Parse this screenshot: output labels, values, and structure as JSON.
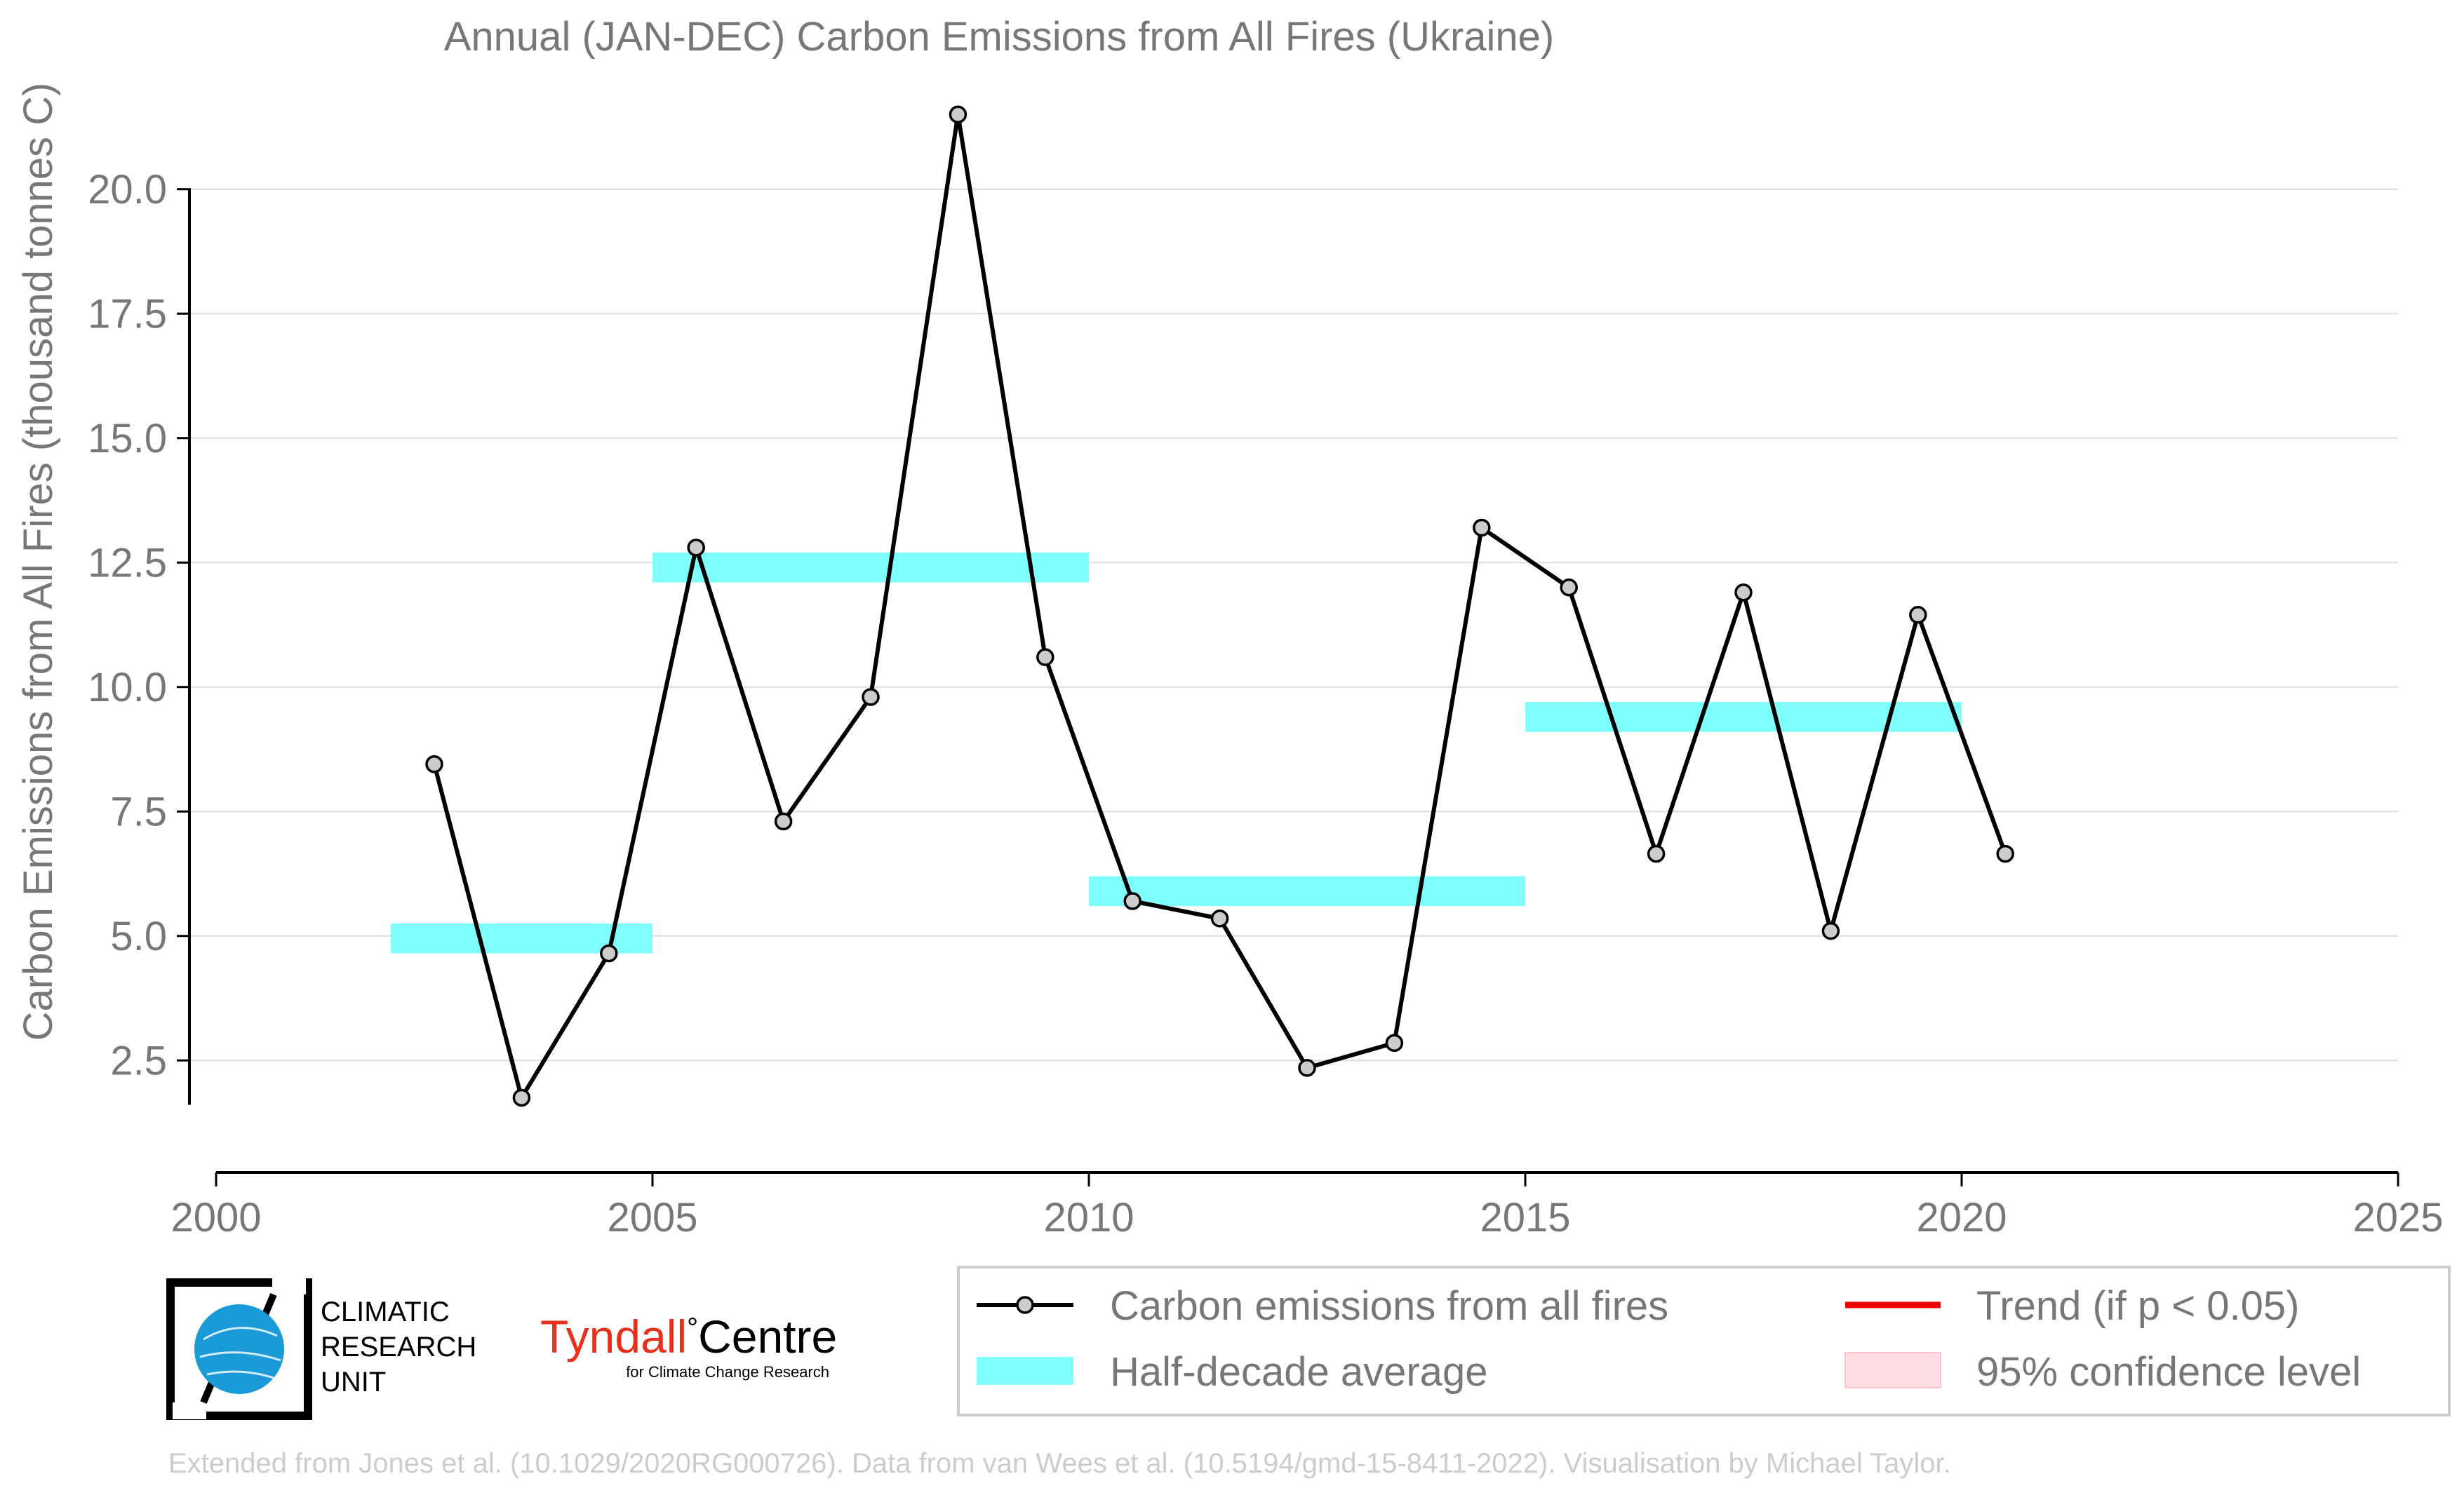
{
  "colors": {
    "text": "#777777",
    "axis": "#000000",
    "grid": "#dddddd",
    "line": "#000000",
    "marker_fill": "#cccccc",
    "half_decade": "#80ffff",
    "trend": "#ee0000",
    "confidence": "#ffdde2",
    "footer": "#cccccc",
    "tyndall_red": "#e8301c",
    "cru_blue": "#1a9ad6"
  },
  "chart_data": {
    "type": "line",
    "title": "Annual (JAN-DEC) Carbon Emissions from All Fires (Ukraine)",
    "xlabel": "",
    "ylabel": "Carbon Emissions from All Fires (thousand tonnes C)",
    "xlim": [
      2000,
      2025
    ],
    "ylim": [
      0.25,
      22.25
    ],
    "xticks": [
      2000,
      2005,
      2010,
      2015,
      2020,
      2025
    ],
    "yticks": [
      2.5,
      5.0,
      7.5,
      10.0,
      12.5,
      15.0,
      17.5,
      20.0
    ],
    "grid": "horizontal",
    "series": [
      {
        "name": "Carbon emissions from all fires",
        "x": [
          2002.5,
          2003.5,
          2004.5,
          2005.5,
          2006.5,
          2007.5,
          2008.5,
          2009.5,
          2010.5,
          2011.5,
          2012.5,
          2013.5,
          2014.5,
          2015.5,
          2016.5,
          2017.5,
          2018.5,
          2019.5,
          2020.5
        ],
        "y": [
          8.45,
          1.75,
          4.65,
          12.8,
          7.3,
          9.8,
          21.5,
          10.6,
          5.7,
          5.35,
          2.35,
          2.85,
          13.2,
          12.0,
          6.65,
          11.9,
          5.1,
          11.45,
          6.65
        ]
      }
    ],
    "half_decade_average": {
      "name": "Half-decade average",
      "segments": [
        {
          "x0": 2002,
          "x1": 2005,
          "y": 4.95
        },
        {
          "x0": 2005,
          "x1": 2010,
          "y": 12.4
        },
        {
          "x0": 2010,
          "x1": 2015,
          "y": 5.9
        },
        {
          "x0": 2015,
          "x1": 2020,
          "y": 9.4
        }
      ]
    },
    "legend": {
      "placement": "bottom-right",
      "entries": [
        {
          "label": "Carbon emissions from all fires",
          "kind": "line-marker"
        },
        {
          "label": "Trend (if p < 0.05)",
          "kind": "trend-line"
        },
        {
          "label": "Half-decade average",
          "kind": "band"
        },
        {
          "label": "95% confidence level",
          "kind": "confidence-box"
        }
      ]
    }
  },
  "logos": {
    "cru_lines": [
      "CLIMATIC",
      "RESEARCH",
      "UNIT"
    ],
    "tyndall_name": "Tyndall",
    "tyndall_degree": "°",
    "tyndall_centre": "Centre",
    "tyndall_sub": "for Climate Change Research"
  },
  "footer": "Extended from Jones et al. (10.1029/2020RG000726). Data from van Wees et al. (10.5194/gmd-15-8411-2022). Visualisation by Michael Taylor."
}
